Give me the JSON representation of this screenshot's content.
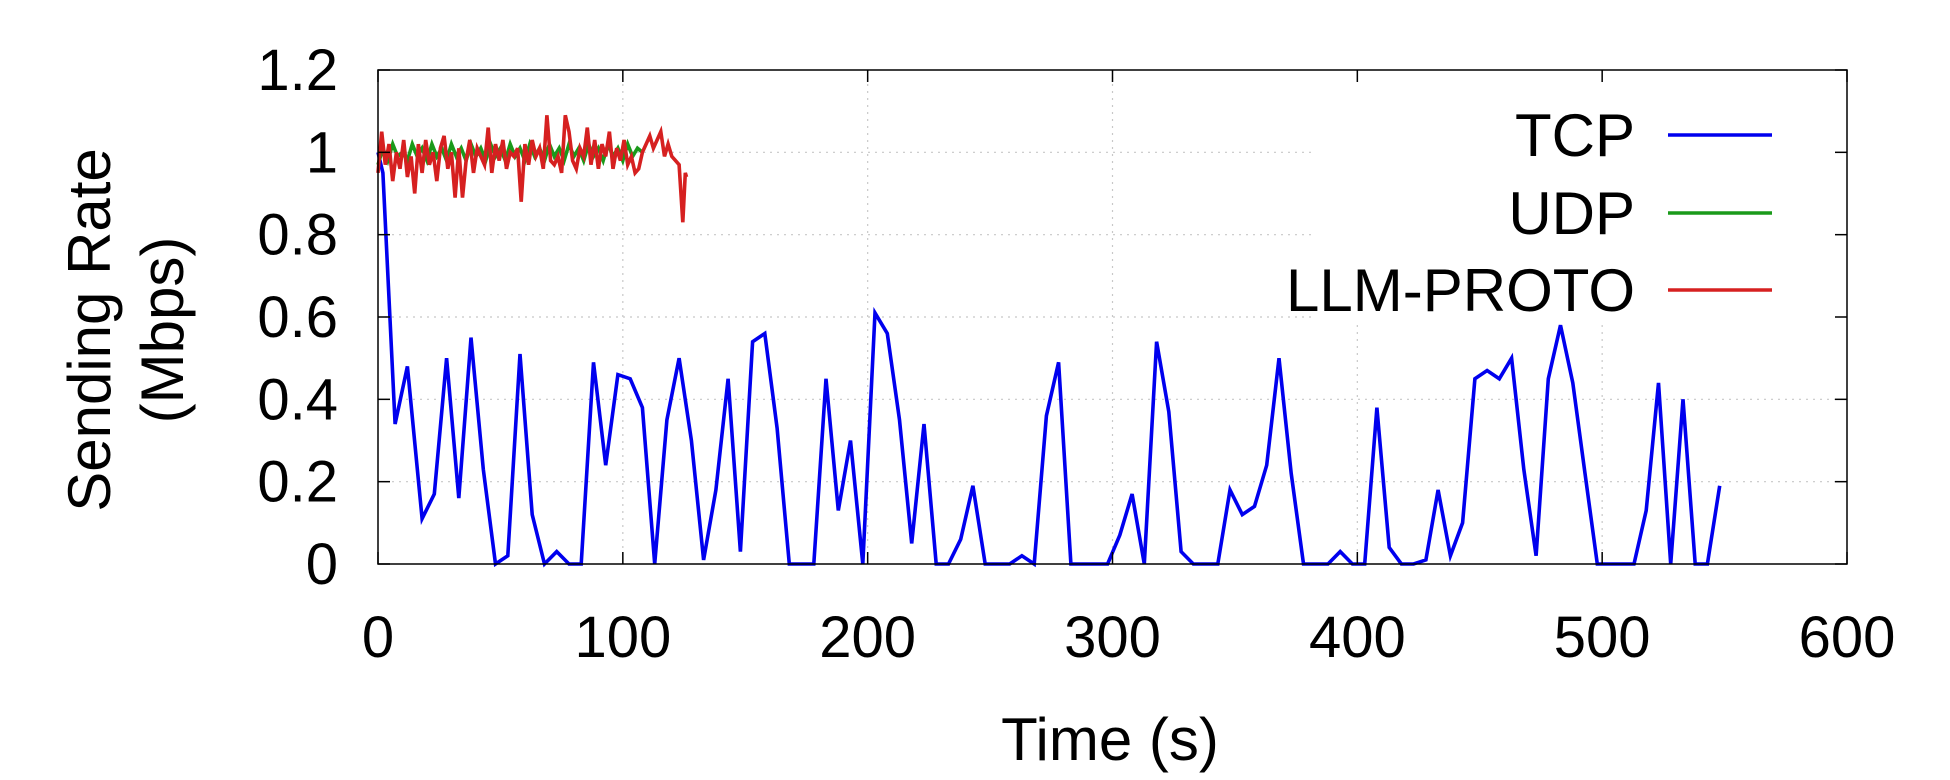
{
  "chart_data": {
    "type": "line",
    "xlabel": "Time (s)",
    "ylabel_lines": [
      "Sending Rate",
      "(Mbps)"
    ],
    "xlim": [
      0,
      600
    ],
    "ylim": [
      0,
      1.2
    ],
    "x_ticks": [
      0,
      100,
      200,
      300,
      400,
      500,
      600
    ],
    "y_ticks": [
      0,
      0.2,
      0.4,
      0.6,
      0.8,
      1,
      1.2
    ],
    "x_tick_labels": [
      "0",
      "100",
      "200",
      "300",
      "400",
      "500",
      "600"
    ],
    "y_tick_labels": [
      "0",
      "0.2",
      "0.4",
      "0.6",
      "0.8",
      "1",
      "1.2"
    ],
    "grid": true,
    "legend_position": "top-right",
    "colors": {
      "TCP": "#0000ee",
      "UDP": "#1a9a1a",
      "LLM-PROTO": "#d62020"
    },
    "series": [
      {
        "name": "TCP",
        "x": [
          0,
          2,
          7,
          12,
          18,
          23,
          28,
          33,
          38,
          43,
          48,
          53,
          58,
          63,
          68,
          73,
          78,
          83,
          88,
          93,
          98,
          103,
          108,
          113,
          118,
          123,
          128,
          133,
          138,
          143,
          148,
          153,
          158,
          163,
          168,
          173,
          178,
          183,
          188,
          193,
          198,
          203,
          208,
          213,
          218,
          223,
          228,
          233,
          238,
          243,
          248,
          253,
          258,
          263,
          268,
          273,
          278,
          283,
          288,
          293,
          298,
          303,
          308,
          313,
          318,
          323,
          328,
          333,
          338,
          343,
          348,
          353,
          358,
          363,
          368,
          373,
          378,
          383,
          388,
          393,
          398,
          403,
          408,
          413,
          418,
          423,
          428,
          433,
          438,
          443,
          448,
          453,
          458,
          463,
          468,
          473,
          478,
          483,
          488,
          493,
          498,
          503,
          508,
          513,
          518,
          523,
          528,
          533,
          538,
          543,
          548
        ],
        "y": [
          1.0,
          0.95,
          0.34,
          0.48,
          0.11,
          0.17,
          0.5,
          0.16,
          0.55,
          0.23,
          0.0,
          0.02,
          0.51,
          0.12,
          0.0,
          0.03,
          0.0,
          0.0,
          0.49,
          0.24,
          0.46,
          0.45,
          0.38,
          0.0,
          0.35,
          0.5,
          0.3,
          0.01,
          0.18,
          0.45,
          0.03,
          0.54,
          0.56,
          0.33,
          0.0,
          0.0,
          0.0,
          0.45,
          0.13,
          0.3,
          0.0,
          0.61,
          0.56,
          0.35,
          0.05,
          0.34,
          0.0,
          0.0,
          0.06,
          0.19,
          0.0,
          0.0,
          0.0,
          0.02,
          0.0,
          0.36,
          0.49,
          0.0,
          0.0,
          0.0,
          0.0,
          0.07,
          0.17,
          0.0,
          0.54,
          0.37,
          0.03,
          0.0,
          0.0,
          0.0,
          0.18,
          0.12,
          0.14,
          0.24,
          0.5,
          0.22,
          0.0,
          0.0,
          0.0,
          0.03,
          0.0,
          0.0,
          0.38,
          0.04,
          0.0,
          0.0,
          0.01,
          0.18,
          0.02,
          0.1,
          0.45,
          0.47,
          0.45,
          0.5,
          0.23,
          0.02,
          0.45,
          0.58,
          0.44,
          0.22,
          0.0,
          0.0,
          0.0,
          0.0,
          0.13,
          0.44,
          0.0,
          0.4,
          0.0,
          0.0,
          0.19
        ]
      },
      {
        "name": "UDP",
        "x": [
          0,
          2,
          4,
          6,
          8,
          10,
          12,
          14,
          16,
          18,
          20,
          22,
          24,
          26,
          28,
          30,
          32,
          34,
          36,
          38,
          40,
          42,
          44,
          46,
          48,
          50,
          52,
          54,
          56,
          58,
          60,
          62,
          64,
          66,
          68,
          70,
          72,
          74,
          76,
          78,
          80,
          82,
          84,
          86,
          88,
          90,
          92,
          94,
          96,
          98,
          100,
          102,
          104,
          106,
          108
        ],
        "y": [
          0.97,
          1.01,
          0.98,
          1.02,
          0.99,
          1.0,
          0.98,
          1.02,
          0.99,
          1.01,
          0.98,
          1.02,
          0.99,
          1.01,
          0.98,
          1.02,
          0.99,
          1.01,
          0.98,
          1.02,
          0.99,
          1.01,
          0.98,
          1.02,
          0.99,
          1.01,
          0.98,
          1.02,
          0.99,
          1.01,
          0.98,
          1.02,
          0.99,
          1.01,
          0.98,
          1.02,
          0.99,
          1.01,
          0.98,
          1.02,
          0.99,
          1.01,
          0.98,
          1.02,
          0.99,
          1.01,
          0.98,
          1.02,
          0.99,
          1.01,
          0.98,
          1.02,
          0.99,
          1.01,
          1.0
        ]
      },
      {
        "name": "LLM-PROTO",
        "x": [
          0,
          1.5,
          3,
          4.5,
          6,
          7.5,
          9,
          10.5,
          12,
          13.5,
          15,
          16.5,
          18,
          19.5,
          21,
          22.5,
          24,
          25.5,
          27,
          28.5,
          30,
          31.5,
          33,
          34.5,
          36,
          37.5,
          39,
          40.5,
          42,
          43.5,
          45,
          46.5,
          48,
          49.5,
          51,
          52.5,
          54,
          55.5,
          57,
          58.5,
          60,
          61.5,
          63,
          64.5,
          66,
          67.5,
          69,
          70.5,
          72,
          73.5,
          75,
          76.5,
          78,
          79.5,
          81,
          82.5,
          84,
          85.5,
          87,
          88.5,
          90,
          91.5,
          93,
          94.5,
          96,
          97.5,
          99,
          100.5,
          102,
          103.5,
          105,
          106.5,
          108,
          109.5,
          111,
          112.5,
          114,
          115.5,
          117,
          118.5,
          120,
          121.5,
          123,
          124.5,
          125.5,
          126
        ],
        "y": [
          0.95,
          1.05,
          0.97,
          1.02,
          0.93,
          1.0,
          0.96,
          1.03,
          0.94,
          0.99,
          0.9,
          1.02,
          0.95,
          1.03,
          0.97,
          1.0,
          0.93,
          1.01,
          1.04,
          0.96,
          1.0,
          0.89,
          1.01,
          0.89,
          0.98,
          1.03,
          0.95,
          1.01,
          0.99,
          0.97,
          1.06,
          0.95,
          1.02,
          0.98,
          1.03,
          0.96,
          1.0,
          0.99,
          1.01,
          0.88,
          1.02,
          0.97,
          1.03,
          0.99,
          1.01,
          0.96,
          1.09,
          0.98,
          0.97,
          0.99,
          0.95,
          1.09,
          1.05,
          0.98,
          0.96,
          1.01,
          0.99,
          1.06,
          0.97,
          1.03,
          0.96,
          1.02,
          0.99,
          1.05,
          0.96,
          1.01,
          0.98,
          1.03,
          0.97,
          0.99,
          0.95,
          0.96,
          1.0,
          1.02,
          1.04,
          1.01,
          1.03,
          1.05,
          0.99,
          1.02,
          0.99,
          0.98,
          0.97,
          0.83,
          0.95,
          0.94
        ]
      }
    ]
  }
}
